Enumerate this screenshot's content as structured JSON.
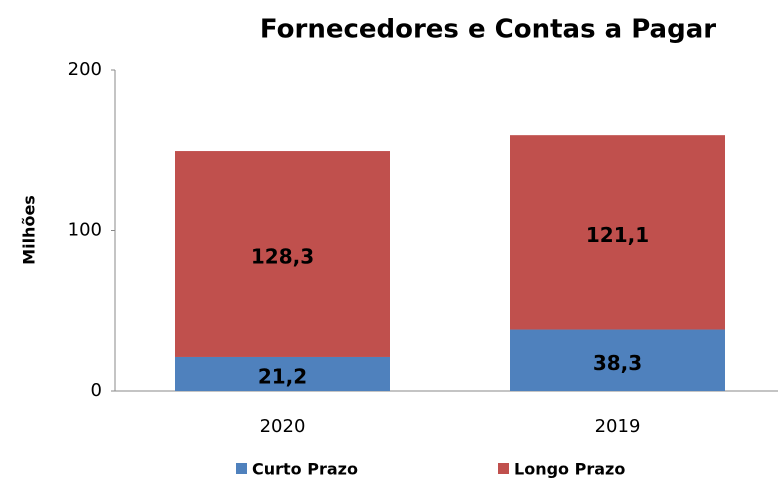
{
  "chart_data": {
    "type": "stacked_bar",
    "title": "Fornecedores e Contas a Pagar",
    "y_label": "Milhões",
    "categories": [
      "2020",
      "2019"
    ],
    "series": [
      {
        "name": "Curto Prazo",
        "color": "#4f81bd",
        "values": [
          21.2,
          38.3
        ],
        "value_labels": [
          "21,2",
          "38,3"
        ]
      },
      {
        "name": "Longo Prazo",
        "color": "#c0504d",
        "values": [
          128.3,
          121.1
        ],
        "value_labels": [
          "128,3",
          "121,1"
        ]
      }
    ],
    "ylim": [
      0,
      200
    ],
    "yticks": [
      0,
      100,
      200
    ],
    "grid": false,
    "legend": "bottom"
  }
}
